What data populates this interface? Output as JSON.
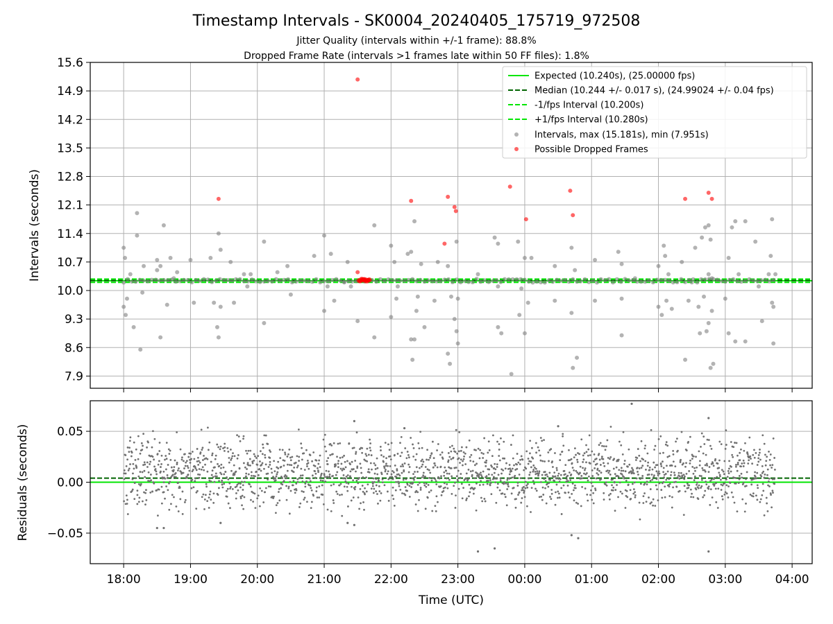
{
  "header": {
    "title": "Timestamp Intervals - SK0004_20240405_175719_972508",
    "subtitle_1": "Jitter Quality (intervals within +/-1 frame): 88.8%",
    "subtitle_2": "Dropped Frame Rate (intervals >1 frames late within 50 FF files): 1.8%"
  },
  "chart_data": [
    {
      "type": "scatter",
      "ylabel": "Intervals (seconds)",
      "xlim_hours": [
        17.5,
        28.3
      ],
      "ylim": [
        7.6,
        15.6
      ],
      "yticks": [
        "7.9",
        "8.6",
        "9.3",
        "10.0",
        "10.7",
        "11.4",
        "12.1",
        "12.8",
        "13.5",
        "14.2",
        "14.9",
        "15.6"
      ],
      "grid": true,
      "legend_position": "top-right",
      "reference_lines": [
        {
          "label": "Expected (10.240s), (25.00000 fps)",
          "value": 10.24,
          "color": "#00e600",
          "style": "solid"
        },
        {
          "label": "Median (10.244 +/- 0.017 s), (24.99024 +/- 0.04 fps)",
          "value": 10.244,
          "color": "#006400",
          "style": "dashed"
        },
        {
          "label": "-1/fps Interval (10.200s)",
          "value": 10.2,
          "color": "#00e600",
          "style": "dashed"
        },
        {
          "label": "+1/fps Interval (10.280s)",
          "value": 10.28,
          "color": "#00e600",
          "style": "dashed"
        }
      ],
      "series": [
        {
          "label": "Intervals, max (15.181s), min (7.951s)",
          "color": "#808080",
          "points": [
            [
              18.0,
              11.05
            ],
            [
              18.02,
              10.8
            ],
            [
              18.05,
              9.8
            ],
            [
              18.0,
              9.6
            ],
            [
              18.03,
              9.4
            ],
            [
              18.1,
              10.4
            ],
            [
              18.15,
              9.1
            ],
            [
              18.2,
              11.9
            ],
            [
              18.25,
              8.55
            ],
            [
              18.2,
              11.35
            ],
            [
              18.3,
              10.6
            ],
            [
              18.28,
              9.95
            ],
            [
              18.5,
              10.75
            ],
            [
              18.55,
              10.6
            ],
            [
              18.6,
              11.6
            ],
            [
              18.55,
              8.85
            ],
            [
              18.65,
              9.65
            ],
            [
              18.5,
              10.5
            ],
            [
              18.7,
              10.8
            ],
            [
              18.75,
              10.3
            ],
            [
              18.8,
              10.45
            ],
            [
              19.0,
              10.75
            ],
            [
              19.05,
              9.7
            ],
            [
              19.3,
              10.8
            ],
            [
              19.35,
              9.7
            ],
            [
              19.4,
              9.1
            ],
            [
              19.42,
              8.85
            ],
            [
              19.45,
              11.0
            ],
            [
              19.42,
              11.4
            ],
            [
              19.45,
              9.6
            ],
            [
              19.6,
              10.7
            ],
            [
              19.65,
              9.7
            ],
            [
              19.8,
              10.4
            ],
            [
              19.85,
              10.1
            ],
            [
              19.9,
              10.4
            ],
            [
              20.1,
              11.2
            ],
            [
              20.1,
              9.2
            ],
            [
              20.3,
              10.45
            ],
            [
              20.45,
              10.6
            ],
            [
              20.5,
              9.9
            ],
            [
              20.85,
              10.85
            ],
            [
              21.0,
              11.35
            ],
            [
              21.0,
              9.5
            ],
            [
              21.05,
              10.1
            ],
            [
              21.1,
              10.9
            ],
            [
              21.15,
              9.75
            ],
            [
              21.3,
              10.2
            ],
            [
              21.35,
              10.7
            ],
            [
              21.4,
              10.1
            ],
            [
              21.5,
              9.25
            ],
            [
              21.75,
              11.6
            ],
            [
              21.75,
              8.85
            ],
            [
              22.0,
              11.1
            ],
            [
              22.0,
              9.35
            ],
            [
              22.05,
              10.7
            ],
            [
              22.08,
              9.8
            ],
            [
              22.1,
              10.1
            ],
            [
              22.25,
              10.9
            ],
            [
              22.3,
              8.8
            ],
            [
              22.32,
              8.3
            ],
            [
              22.35,
              8.8
            ],
            [
              22.3,
              10.95
            ],
            [
              22.35,
              11.7
            ],
            [
              22.38,
              9.5
            ],
            [
              22.4,
              9.85
            ],
            [
              22.45,
              10.65
            ],
            [
              22.5,
              9.1
            ],
            [
              22.65,
              9.75
            ],
            [
              22.7,
              10.7
            ],
            [
              22.85,
              8.45
            ],
            [
              22.88,
              8.2
            ],
            [
              22.85,
              10.6
            ],
            [
              22.9,
              9.85
            ],
            [
              22.95,
              9.3
            ],
            [
              22.98,
              9.0
            ],
            [
              22.98,
              11.2
            ],
            [
              23.0,
              8.7
            ],
            [
              23.0,
              9.8
            ],
            [
              23.3,
              10.4
            ],
            [
              23.55,
              11.3
            ],
            [
              23.6,
              11.15
            ],
            [
              23.6,
              10.1
            ],
            [
              23.6,
              9.1
            ],
            [
              23.65,
              8.95
            ],
            [
              23.8,
              7.95
            ],
            [
              23.9,
              11.2
            ],
            [
              23.92,
              9.4
            ],
            [
              23.95,
              10.05
            ],
            [
              24.0,
              10.8
            ],
            [
              24.0,
              8.95
            ],
            [
              24.05,
              9.7
            ],
            [
              24.1,
              10.8
            ],
            [
              24.45,
              10.6
            ],
            [
              24.45,
              9.75
            ],
            [
              24.7,
              11.05
            ],
            [
              24.7,
              9.45
            ],
            [
              24.72,
              8.1
            ],
            [
              24.75,
              10.5
            ],
            [
              24.78,
              8.35
            ],
            [
              25.05,
              10.75
            ],
            [
              25.05,
              9.75
            ],
            [
              25.4,
              10.95
            ],
            [
              25.45,
              10.65
            ],
            [
              25.45,
              9.8
            ],
            [
              25.45,
              8.9
            ],
            [
              25.65,
              10.3
            ],
            [
              26.0,
              10.6
            ],
            [
              26.0,
              9.6
            ],
            [
              26.05,
              9.4
            ],
            [
              26.08,
              11.1
            ],
            [
              26.1,
              10.85
            ],
            [
              26.12,
              9.75
            ],
            [
              26.15,
              10.4
            ],
            [
              26.2,
              9.55
            ],
            [
              26.35,
              10.7
            ],
            [
              26.4,
              8.3
            ],
            [
              26.45,
              9.75
            ],
            [
              26.5,
              10.2
            ],
            [
              26.55,
              11.05
            ],
            [
              26.6,
              9.6
            ],
            [
              26.62,
              8.95
            ],
            [
              26.65,
              11.3
            ],
            [
              26.68,
              9.85
            ],
            [
              26.7,
              11.55
            ],
            [
              26.72,
              9.0
            ],
            [
              26.75,
              10.4
            ],
            [
              26.75,
              11.6
            ],
            [
              26.78,
              8.1
            ],
            [
              26.8,
              9.5
            ],
            [
              26.82,
              8.2
            ],
            [
              26.75,
              9.2
            ],
            [
              26.78,
              11.25
            ],
            [
              26.8,
              10.3
            ],
            [
              27.0,
              9.8
            ],
            [
              27.05,
              10.8
            ],
            [
              27.05,
              8.95
            ],
            [
              27.1,
              11.55
            ],
            [
              27.15,
              11.7
            ],
            [
              27.2,
              10.4
            ],
            [
              27.15,
              8.75
            ],
            [
              27.3,
              11.7
            ],
            [
              27.3,
              8.75
            ],
            [
              27.45,
              11.2
            ],
            [
              27.5,
              10.1
            ],
            [
              27.55,
              9.25
            ],
            [
              27.65,
              10.4
            ],
            [
              27.68,
              10.85
            ],
            [
              27.7,
              11.75
            ],
            [
              27.7,
              9.7
            ],
            [
              27.72,
              9.6
            ],
            [
              27.72,
              8.7
            ],
            [
              27.75,
              10.4
            ]
          ]
        },
        {
          "label": "Possible Dropped Frames",
          "color": "#ff0000",
          "points": [
            [
              19.42,
              12.25
            ],
            [
              21.5,
              15.18
            ],
            [
              21.5,
              10.45
            ],
            [
              22.3,
              12.2
            ],
            [
              22.85,
              12.3
            ],
            [
              22.8,
              11.15
            ],
            [
              22.95,
              12.05
            ],
            [
              22.97,
              11.95
            ],
            [
              23.78,
              12.55
            ],
            [
              24.02,
              11.75
            ],
            [
              24.68,
              12.45
            ],
            [
              24.72,
              11.85
            ],
            [
              26.4,
              12.25
            ],
            [
              26.75,
              12.4
            ],
            [
              26.8,
              12.25
            ]
          ]
        }
      ]
    },
    {
      "type": "scatter",
      "xlabel": "Time (UTC)",
      "ylabel": "Residuals (seconds)",
      "xlim_hours": [
        17.5,
        28.3
      ],
      "ylim": [
        -0.08,
        0.08
      ],
      "yticks": [
        "−0.05",
        "0.00",
        "0.05"
      ],
      "xticks": [
        "18:00",
        "19:00",
        "20:00",
        "21:00",
        "22:00",
        "23:00",
        "00:00",
        "01:00",
        "02:00",
        "03:00",
        "04:00"
      ],
      "grid": true,
      "reference_lines": [
        {
          "value": 0.0,
          "color": "#00e600",
          "style": "solid"
        },
        {
          "value": 0.004,
          "color": "#006400",
          "style": "dashed"
        }
      ],
      "series": [
        {
          "color": "#808080",
          "time_range_hours": [
            18.0,
            27.75
          ],
          "points_approx": 2000,
          "distribution": "bimodal clusters near 0.00 and +0.02 seconds, spread ±0.045",
          "outliers": [
            [
              21.45,
              0.06
            ],
            [
              18.5,
              -0.045
            ],
            [
              18.6,
              -0.045
            ],
            [
              19.45,
              -0.04
            ],
            [
              21.35,
              -0.04
            ],
            [
              21.45,
              -0.042
            ],
            [
              23.3,
              -0.068
            ],
            [
              23.55,
              -0.065
            ],
            [
              24.7,
              -0.052
            ],
            [
              24.8,
              -0.055
            ],
            [
              25.6,
              0.077
            ],
            [
              26.75,
              0.063
            ],
            [
              26.75,
              -0.068
            ],
            [
              22.2,
              0.053
            ],
            [
              24.5,
              0.055
            ]
          ]
        }
      ]
    }
  ]
}
